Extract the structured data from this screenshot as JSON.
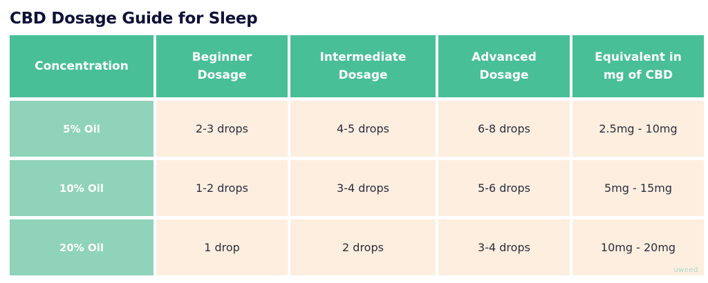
{
  "title": "CBD Dosage Guide for Sleep",
  "headers": [
    "Concentration",
    "Beginner Dosage",
    "Intermediate Dosage",
    "Advanced Dosage",
    "Equivalent in mg of CBD"
  ],
  "rows": [
    {
      "concentration": "5% Oil",
      "beginner": "2-3 drops",
      "intermediate": "4-5 drops",
      "advanced": "6-8 drops",
      "equivalent": "2.5mg - 10mg"
    },
    {
      "concentration": "10% Oil",
      "beginner": "1-2 drops",
      "intermediate": "3-4 drops",
      "advanced": "5-6 drops",
      "equivalent": "5mg - 15mg"
    },
    {
      "concentration": "20% Oil",
      "beginner": "1 drop",
      "intermediate": "2 drops",
      "advanced": "3-4 drops",
      "equivalent": "10mg - 20mg"
    }
  ],
  "watermark": "uweed",
  "colors": {
    "header_bg": "#48bf97",
    "row_label_bg": "#8ed3ba",
    "cell_bg": "#fdeee0",
    "title_text": "#0d1137"
  }
}
